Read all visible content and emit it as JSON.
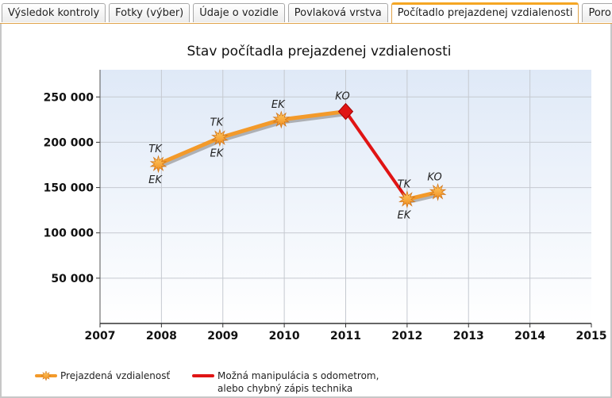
{
  "tabs": [
    {
      "label": "Výsledok kontroly",
      "active": false
    },
    {
      "label": "Fotky (výber)",
      "active": false
    },
    {
      "label": "Údaje o vozidle",
      "active": false
    },
    {
      "label": "Povlaková vrstva",
      "active": false
    },
    {
      "label": "Počítadlo prejazdenej vzdialenosti",
      "active": true
    },
    {
      "label": "Poro",
      "active": false
    }
  ],
  "chart_data": {
    "type": "line",
    "title": "Stav počítadla prejazdenej vzdialenosti",
    "xlim": [
      2007,
      2015
    ],
    "ylim": [
      0,
      280000
    ],
    "x_ticks": [
      2007,
      2008,
      2009,
      2010,
      2011,
      2012,
      2013,
      2014,
      2015
    ],
    "x_tick_labels": [
      "2007",
      "2008",
      "2009",
      "2010",
      "2011",
      "2012",
      "2013",
      "2014",
      "2015"
    ],
    "y_ticks": [
      50000,
      100000,
      150000,
      200000,
      250000
    ],
    "y_tick_labels": [
      "50 000",
      "100 000",
      "150 000",
      "200 000",
      "250 000"
    ],
    "grid": true,
    "legend_position": "bottom-left",
    "colors": {
      "odometer": "#f39a2a",
      "manipulation": "#e01414",
      "plot_bg_top": "#dfe9f7",
      "plot_bg_bottom": "#ffffff"
    },
    "series": [
      {
        "name": "Prejazdená vzdialenosť",
        "color": "#f39a2a",
        "points": [
          {
            "x": 2007.95,
            "y": 176000,
            "marker": "star",
            "labels": [
              {
                "text": "TK",
                "position": "above"
              },
              {
                "text": "EK",
                "position": "below"
              }
            ]
          },
          {
            "x": 2008.95,
            "y": 205000,
            "marker": "star",
            "labels": [
              {
                "text": "TK",
                "position": "above"
              },
              {
                "text": "EK",
                "position": "below"
              }
            ]
          },
          {
            "x": 2009.95,
            "y": 225000,
            "marker": "star",
            "labels": [
              {
                "text": "EK",
                "position": "above"
              }
            ]
          },
          {
            "x": 2011.0,
            "y": 234000,
            "marker": "diamond",
            "labels": [
              {
                "text": "KO",
                "position": "above"
              }
            ]
          },
          {
            "x": 2012.0,
            "y": 137000,
            "marker": "star",
            "labels": [
              {
                "text": "TK",
                "position": "above"
              },
              {
                "text": "EK",
                "position": "below"
              }
            ]
          },
          {
            "x": 2012.5,
            "y": 145000,
            "marker": "star",
            "labels": [
              {
                "text": "KO",
                "position": "above"
              }
            ]
          }
        ]
      },
      {
        "name": "Možná manipulácia s odometrom, alebo chybný zápis technika",
        "color": "#e01414",
        "points": [
          {
            "x": 2011.0,
            "y": 234000
          },
          {
            "x": 2012.0,
            "y": 137000
          }
        ]
      }
    ],
    "legend": [
      {
        "label_lines": [
          "Prejazdená vzdialenosť"
        ],
        "color": "#f39a2a"
      },
      {
        "label_lines": [
          "Možná manipulácia s odometrom,",
          "alebo chybný zápis technika"
        ],
        "color": "#e01414"
      }
    ]
  }
}
